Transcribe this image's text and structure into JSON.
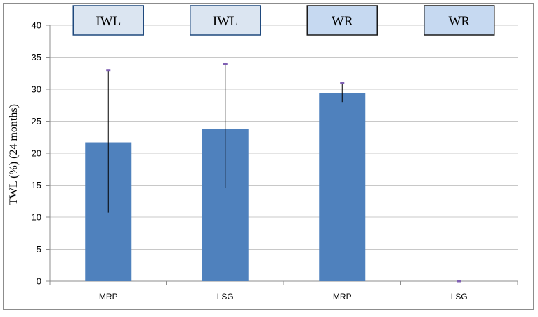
{
  "chart_data": {
    "type": "bar",
    "title": "",
    "xlabel": "",
    "ylabel": "TWL (%) (24 months)",
    "ylim": [
      0,
      40
    ],
    "yticks": [
      0,
      5,
      10,
      15,
      20,
      25,
      30,
      35,
      40
    ],
    "grid": true,
    "categories": [
      "MRP",
      "LSG",
      "MRP",
      "LSG"
    ],
    "group_labels": [
      "IWL",
      "IWL",
      "WR",
      "WR"
    ],
    "series": [
      {
        "values": [
          21.7,
          23.8,
          29.4,
          0
        ],
        "error_low": [
          10.7,
          14.5,
          28.0,
          0
        ],
        "error_high": [
          33.0,
          34.0,
          31.0,
          0
        ],
        "color": "#4f81bd"
      }
    ],
    "colors": {
      "bar": "#4f81bd",
      "error_cap": "#7f5fb3",
      "iwl_box_fill": "#dbe5f1",
      "iwl_box_border": "#1f497d",
      "wr_box_fill": "#c6d9f1",
      "wr_box_border": "#1a1a1a",
      "grid": "#c8c8c8"
    }
  }
}
